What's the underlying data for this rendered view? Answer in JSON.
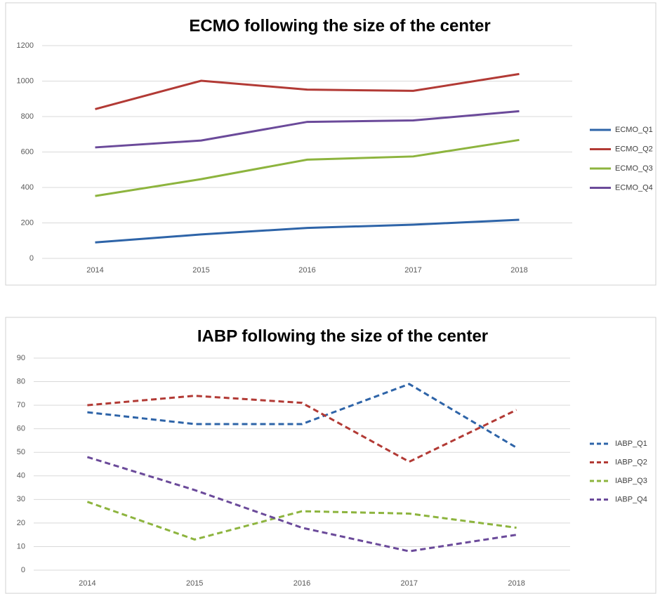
{
  "chart_data": [
    {
      "type": "line",
      "title": "ECMO following the size of the center",
      "categories": [
        "2014",
        "2015",
        "2016",
        "2017",
        "2018"
      ],
      "series": [
        {
          "name": "ECMO_Q1",
          "color": "#2e64a8",
          "values": [
            90,
            135,
            172,
            190,
            218
          ]
        },
        {
          "name": "ECMO_Q2",
          "color": "#b23a35",
          "values": [
            842,
            1002,
            952,
            945,
            1040
          ]
        },
        {
          "name": "ECMO_Q3",
          "color": "#8db43e",
          "values": [
            352,
            447,
            557,
            575,
            668
          ]
        },
        {
          "name": "ECMO_Q4",
          "color": "#6b4a9a",
          "values": [
            626,
            665,
            770,
            778,
            830
          ]
        }
      ],
      "ylim": [
        0,
        1200
      ],
      "yticks": [
        0,
        200,
        400,
        600,
        800,
        1000,
        1200
      ],
      "grid": true,
      "legend": "right",
      "line_style": "solid"
    },
    {
      "type": "line",
      "title": "IABP following the size of the center",
      "categories": [
        "2014",
        "2015",
        "2016",
        "2017",
        "2018"
      ],
      "series": [
        {
          "name": "IABP_Q1",
          "color": "#2e64a8",
          "values": [
            67,
            62,
            62,
            79,
            52
          ]
        },
        {
          "name": "IABP_Q2",
          "color": "#b23a35",
          "values": [
            70,
            74,
            71,
            46,
            68
          ]
        },
        {
          "name": "IABP_Q3",
          "color": "#8db43e",
          "values": [
            29,
            13,
            25,
            24,
            18
          ]
        },
        {
          "name": "IABP_Q4",
          "color": "#6b4a9a",
          "values": [
            48,
            34,
            18,
            8,
            15
          ]
        }
      ],
      "ylim": [
        0,
        90
      ],
      "yticks": [
        0,
        10,
        20,
        30,
        40,
        50,
        60,
        70,
        80,
        90
      ],
      "grid": true,
      "legend": "right",
      "line_style": "dashed"
    }
  ]
}
